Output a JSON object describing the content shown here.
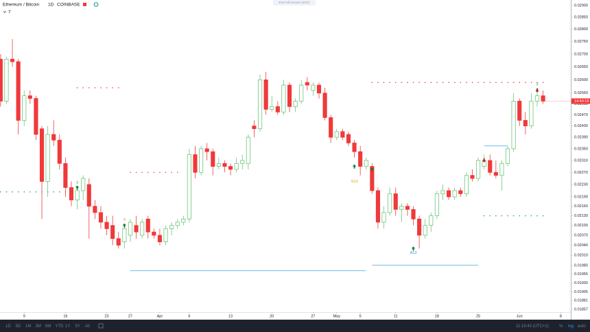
{
  "chart_data": {
    "type": "candlestick",
    "title": "Ethereum / Bitcoin",
    "interval": "1D",
    "exchange": "COINBASE",
    "indicator_count": 7,
    "x": [
      65,
      66,
      67,
      68,
      69,
      70,
      71,
      72,
      73,
      74,
      75,
      76,
      77,
      78,
      79,
      80,
      81,
      82,
      83,
      84,
      85,
      86,
      87,
      88,
      89,
      90,
      91,
      92,
      93,
      94,
      95,
      96,
      97,
      98,
      99,
      100,
      101,
      102,
      103,
      104,
      105,
      106,
      107,
      108,
      109,
      110,
      111,
      112,
      113,
      114,
      115,
      116,
      117,
      118,
      119,
      120,
      121,
      122,
      123,
      124,
      125,
      126,
      127,
      128,
      129,
      130,
      131,
      132,
      133,
      134,
      135,
      136,
      137,
      138,
      139,
      140,
      141,
      142,
      143,
      144,
      145,
      146,
      147,
      148,
      149,
      150,
      151,
      152,
      153,
      154,
      155,
      156,
      157
    ],
    "open": [
      0.0268,
      0.0252,
      0.0268,
      0.0267,
      0.0245,
      0.0254,
      0.0253,
      0.0242,
      0.0224,
      0.024,
      0.0238,
      0.023,
      0.0222,
      0.0218,
      0.0221,
      0.0223,
      0.0216,
      0.0214,
      0.0211,
      0.021,
      0.0206,
      0.0205,
      0.0207,
      0.021,
      0.0207,
      0.0212,
      0.0208,
      0.0207,
      0.0205,
      0.0209,
      0.021,
      0.0211,
      0.0212,
      0.0233,
      0.0227,
      0.0235,
      0.0234,
      0.0229,
      0.023,
      0.0229,
      0.0228,
      0.023,
      0.023,
      0.0243,
      0.0242,
      0.026,
      0.0249,
      0.025,
      0.0248,
      0.0258,
      0.025,
      0.0252,
      0.0259,
      0.0256,
      0.0258,
      0.0255,
      0.0246,
      0.0239,
      0.0241,
      0.024,
      0.0237,
      0.0234,
      0.0229,
      0.0229,
      0.0221,
      0.0211,
      0.0214,
      0.022,
      0.0215,
      0.0216,
      0.0215,
      0.0212,
      0.0207,
      0.021,
      0.0213,
      0.022,
      0.0221,
      0.0219,
      0.0221,
      0.022,
      0.0226,
      0.0225,
      0.0229,
      0.0231,
      0.0227,
      0.0226,
      0.023,
      0.0235,
      0.0252,
      0.0245,
      0.0243,
      0.0252,
      0.0254
    ],
    "high": [
      0.027,
      0.0269,
      0.0276,
      0.0268,
      0.0256,
      0.0256,
      0.0254,
      0.0243,
      0.0243,
      0.0245,
      0.024,
      0.0232,
      0.0224,
      0.0222,
      0.0226,
      0.0225,
      0.0218,
      0.0216,
      0.0213,
      0.0213,
      0.0208,
      0.021,
      0.0212,
      0.0213,
      0.0212,
      0.0213,
      0.0209,
      0.0209,
      0.021,
      0.0211,
      0.0212,
      0.0213,
      0.0235,
      0.0236,
      0.0236,
      0.0237,
      0.0235,
      0.0232,
      0.0231,
      0.023,
      0.0232,
      0.0233,
      0.024,
      0.0245,
      0.0262,
      0.0263,
      0.0254,
      0.0252,
      0.026,
      0.0259,
      0.0253,
      0.026,
      0.0261,
      0.0259,
      0.0259,
      0.0257,
      0.0247,
      0.0242,
      0.0242,
      0.0241,
      0.0238,
      0.0236,
      0.0232,
      0.023,
      0.0222,
      0.0216,
      0.0222,
      0.0222,
      0.0217,
      0.0217,
      0.0216,
      0.0213,
      0.0212,
      0.0214,
      0.0221,
      0.0223,
      0.0222,
      0.0222,
      0.0222,
      0.0227,
      0.0228,
      0.0232,
      0.0233,
      0.0233,
      0.0231,
      0.0231,
      0.0236,
      0.0255,
      0.0253,
      0.0248,
      0.0255,
      0.0256,
      0.0256
    ],
    "low": [
      0.025,
      0.0251,
      0.0265,
      0.024,
      0.0243,
      0.0251,
      0.0238,
      0.0212,
      0.0219,
      0.0236,
      0.0228,
      0.0219,
      0.0216,
      0.0215,
      0.0218,
      0.0206,
      0.0212,
      0.0209,
      0.0207,
      0.0204,
      0.0203,
      0.0203,
      0.0205,
      0.0206,
      0.0206,
      0.0206,
      0.0206,
      0.0204,
      0.0204,
      0.0207,
      0.0209,
      0.021,
      0.0211,
      0.0225,
      0.0226,
      0.0231,
      0.0226,
      0.0228,
      0.0227,
      0.0226,
      0.0227,
      0.0228,
      0.0228,
      0.0239,
      0.0241,
      0.0247,
      0.0248,
      0.0247,
      0.0247,
      0.0248,
      0.0248,
      0.0251,
      0.0256,
      0.0254,
      0.0253,
      0.0245,
      0.0237,
      0.0238,
      0.0238,
      0.0236,
      0.0232,
      0.0226,
      0.0228,
      0.022,
      0.0209,
      0.0209,
      0.0213,
      0.0213,
      0.0211,
      0.0213,
      0.021,
      0.0203,
      0.0206,
      0.0208,
      0.0212,
      0.0218,
      0.0218,
      0.0218,
      0.0219,
      0.0219,
      0.0224,
      0.0224,
      0.0228,
      0.0226,
      0.0225,
      0.0221,
      0.0229,
      0.0234,
      0.0243,
      0.024,
      0.0242,
      0.025,
      0.0251
    ],
    "close": [
      0.0252,
      0.0268,
      0.0267,
      0.0245,
      0.0254,
      0.0253,
      0.024,
      0.0224,
      0.024,
      0.0238,
      0.023,
      0.0222,
      0.0218,
      0.0221,
      0.0225,
      0.0216,
      0.0214,
      0.0211,
      0.0209,
      0.0206,
      0.0204,
      0.0209,
      0.0211,
      0.0208,
      0.0211,
      0.0208,
      0.0207,
      0.0205,
      0.0209,
      0.021,
      0.0211,
      0.0212,
      0.0233,
      0.0227,
      0.0235,
      0.0234,
      0.0229,
      0.023,
      0.0229,
      0.0228,
      0.023,
      0.0231,
      0.0239,
      0.0242,
      0.026,
      0.0249,
      0.025,
      0.0248,
      0.0258,
      0.025,
      0.0252,
      0.0258,
      0.0258,
      0.0258,
      0.0255,
      0.0246,
      0.0239,
      0.0241,
      0.0239,
      0.0237,
      0.0234,
      0.0229,
      0.0231,
      0.0221,
      0.0211,
      0.0214,
      0.022,
      0.0215,
      0.0216,
      0.0215,
      0.0212,
      0.0207,
      0.021,
      0.0213,
      0.022,
      0.0221,
      0.0219,
      0.0221,
      0.022,
      0.0226,
      0.0225,
      0.0231,
      0.0231,
      0.0227,
      0.0226,
      0.023,
      0.0235,
      0.0252,
      0.0245,
      0.0243,
      0.0252,
      0.0254,
      0.0252
    ],
    "up_color": "#6cc47a",
    "down_color": "#f0393a",
    "xlim": [
      64.9,
      161.7
    ],
    "xticks": [
      {
        "value": 69,
        "label": "9"
      },
      {
        "value": 76,
        "label": "16"
      },
      {
        "value": 83,
        "label": "23"
      },
      {
        "value": 87,
        "label": "27"
      },
      {
        "value": 92,
        "label": "Apr"
      },
      {
        "value": 97,
        "label": "6"
      },
      {
        "value": 104,
        "label": "13"
      },
      {
        "value": 111,
        "label": "20"
      },
      {
        "value": 118,
        "label": "27"
      },
      {
        "value": 122,
        "label": "May"
      },
      {
        "value": 126,
        "label": "5"
      },
      {
        "value": 132,
        "label": "11"
      },
      {
        "value": 139,
        "label": "18"
      },
      {
        "value": 146,
        "label": "25"
      },
      {
        "value": 153,
        "label": "Jun"
      },
      {
        "value": 160,
        "label": "8"
      }
    ],
    "ylim": [
      0.01829,
      0.02923
    ],
    "log": true,
    "yticks": [
      {
        "value": 0.029,
        "label": "0.02900"
      },
      {
        "value": 0.0285,
        "label": "0.02850"
      },
      {
        "value": 0.028,
        "label": "0.02800"
      },
      {
        "value": 0.0275,
        "label": "0.02750"
      },
      {
        "value": 0.027,
        "label": "0.02700"
      },
      {
        "value": 0.0265,
        "label": "0.02650"
      },
      {
        "value": 0.026,
        "label": "0.02600"
      },
      {
        "value": 0.0255,
        "label": "0.02550"
      },
      {
        "value": 0.0251,
        "label": "0.02510"
      },
      {
        "value": 0.0247,
        "label": "0.02470"
      },
      {
        "value": 0.0243,
        "label": "0.02430"
      },
      {
        "value": 0.0239,
        "label": "0.02390"
      },
      {
        "value": 0.0235,
        "label": "0.02350"
      },
      {
        "value": 0.0231,
        "label": "0.02310"
      },
      {
        "value": 0.0227,
        "label": "0.02270"
      },
      {
        "value": 0.0223,
        "label": "0.02230"
      },
      {
        "value": 0.0219,
        "label": "0.02190"
      },
      {
        "value": 0.0216,
        "label": "0.02160"
      },
      {
        "value": 0.0213,
        "label": "0.02130"
      },
      {
        "value": 0.021,
        "label": "0.02100"
      },
      {
        "value": 0.0207,
        "label": "0.02070"
      },
      {
        "value": 0.0204,
        "label": "0.02040"
      },
      {
        "value": 0.0201,
        "label": "0.02010"
      },
      {
        "value": 0.0198,
        "label": "0.01980"
      },
      {
        "value": 0.01955,
        "label": "0.01955"
      },
      {
        "value": 0.0193,
        "label": "0.01930"
      },
      {
        "value": 0.01905,
        "label": "0.01905"
      },
      {
        "value": 0.01881,
        "label": "0.01881"
      },
      {
        "value": 0.01857,
        "label": "0.01857"
      }
    ],
    "levels": [
      {
        "value": 0.0257,
        "from": 78,
        "to": 86,
        "color": "#f0393a",
        "style": "dotted"
      },
      {
        "value": 0.0227,
        "from": 87,
        "to": 96,
        "color": "#f0393a",
        "style": "dotted"
      },
      {
        "value": 0.0259,
        "from": 128,
        "to": 158,
        "color": "#f0393a",
        "style": "dotted"
      },
      {
        "value": 0.02206,
        "from": 65,
        "to": 77,
        "color": "#2e9e4a",
        "style": "dotted"
      },
      {
        "value": 0.0213,
        "from": 147,
        "to": 158,
        "color": "#2e9e4a",
        "style": "dotted"
      },
      {
        "value": 0.01965,
        "from": 87,
        "to": 126.9,
        "color": "#5ab4e8",
        "style": "solid"
      },
      {
        "value": 0.01981,
        "from": 128,
        "to": 146,
        "color": "#5ab4e8",
        "style": "solid"
      },
      {
        "value": 0.0236,
        "from": 147,
        "to": 151,
        "color": "#5ab4e8",
        "style": "solid"
      }
    ],
    "annotations": [
      {
        "text": "9",
        "x": 78,
        "y": 0.02235,
        "color": "#4caf50"
      },
      {
        "text": "9",
        "x": 86,
        "y": 0.02117,
        "color": "#f08a3a"
      },
      {
        "text": "S13",
        "x": 125,
        "y": 0.0224,
        "color": "#d9a200"
      },
      {
        "text": "9",
        "x": 128,
        "y": 0.02255,
        "color": "#f0393a"
      },
      {
        "text": "A13",
        "x": 135,
        "y": 0.02017,
        "color": "#2196f3"
      },
      {
        "text": "9",
        "x": 156,
        "y": 0.02583,
        "color": "#4caf50"
      }
    ],
    "signals": [
      {
        "x": 78,
        "y": 0.0222,
        "direction": "up",
        "color": "#1b7a2e"
      },
      {
        "x": 86,
        "y": 0.021,
        "direction": "up",
        "color": "#1b7a2e"
      },
      {
        "x": 125,
        "y": 0.0229,
        "direction": "up",
        "color": "#1b7a2e"
      },
      {
        "x": 128,
        "y": 0.0228,
        "direction": "up",
        "color": "#1b7a2e"
      },
      {
        "x": 135,
        "y": 0.0203,
        "direction": "up",
        "color": "#1b7a2e"
      },
      {
        "x": 147,
        "y": 0.0231,
        "direction": "down",
        "color": "#b01c1c"
      },
      {
        "x": 156,
        "y": 0.0256,
        "direction": "down",
        "color": "#b01c1c"
      }
    ],
    "countdown": "14:40:19"
  },
  "ui": {
    "exit_fullscreen": "Exit Full Screen (ESC)",
    "ranges": [
      "1D",
      "5D",
      "1M",
      "3M",
      "6M",
      "YTD",
      "1Y",
      "5Y",
      "All"
    ],
    "clock": "11:19:40 (UTC+2)",
    "percent": "%",
    "log": "log",
    "auto": "auto"
  }
}
